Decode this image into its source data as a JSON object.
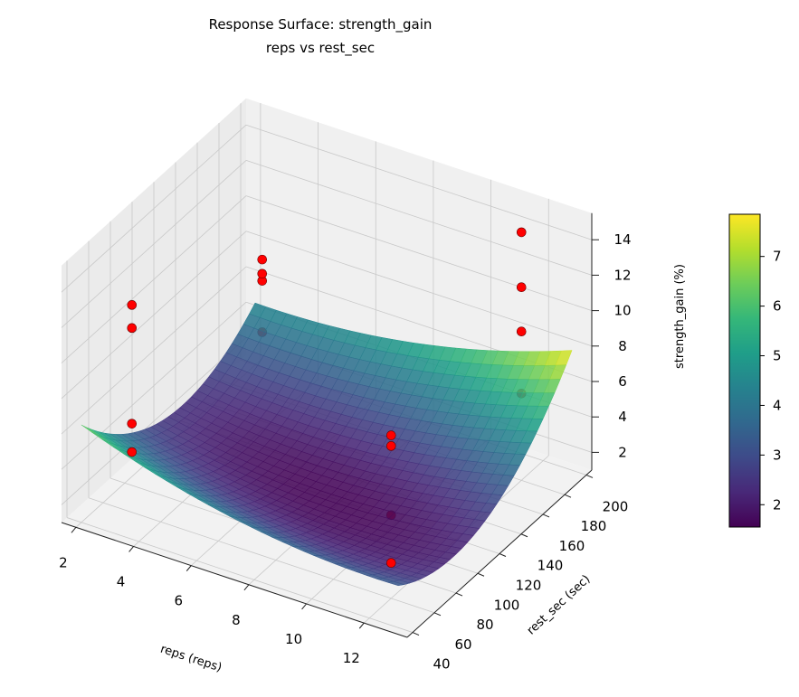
{
  "chart_data": {
    "type": "surface3d",
    "title": "Response Surface: strength_gain",
    "subtitle": "reps vs rest_sec",
    "xlabel": "reps (reps)",
    "ylabel": "rest_sec (sec)",
    "zlabel": "strength_gain (%)",
    "colorbar_label": "strength_gain (%)",
    "colormap": "viridis",
    "xlim": [
      1.5,
      13.5
    ],
    "ylim": [
      35,
      205
    ],
    "zlim": [
      1,
      15.5
    ],
    "x_ticks": [
      2,
      4,
      6,
      8,
      10,
      12
    ],
    "y_ticks": [
      40,
      60,
      80,
      100,
      120,
      140,
      160,
      180,
      200
    ],
    "z_ticks": [
      2,
      4,
      6,
      8,
      10,
      12,
      14
    ],
    "colorbar_range": [
      1.55,
      7.85
    ],
    "colorbar_ticks": [
      2,
      3,
      4,
      5,
      6,
      7
    ],
    "grid": true,
    "surface_model": {
      "form": "quadratic",
      "min_value": 1.6,
      "center_reps": 8,
      "center_rest_sec": 110,
      "coef_reps2": 0.0303,
      "coef_rest2": 0.000466,
      "coef_cross": 0.003636,
      "reps_range": [
        2,
        13
      ],
      "rest_sec_range": [
        40,
        200
      ]
    },
    "points_color": "#ff0000",
    "points": [
      {
        "reps": 3,
        "rest_sec": 60,
        "strength_gain": 4.4
      },
      {
        "reps": 3,
        "rest_sec": 60,
        "strength_gain": 6.0
      },
      {
        "reps": 3,
        "rest_sec": 60,
        "strength_gain": 11.4
      },
      {
        "reps": 3,
        "rest_sec": 60,
        "strength_gain": 12.7
      },
      {
        "reps": 3,
        "rest_sec": 180,
        "strength_gain": 4.5
      },
      {
        "reps": 3,
        "rest_sec": 180,
        "strength_gain": 7.4
      },
      {
        "reps": 3,
        "rest_sec": 180,
        "strength_gain": 7.8
      },
      {
        "reps": 3,
        "rest_sec": 180,
        "strength_gain": 8.6
      },
      {
        "reps": 12,
        "rest_sec": 60,
        "strength_gain": 3.0
      },
      {
        "reps": 12,
        "rest_sec": 60,
        "strength_gain": 5.7
      },
      {
        "reps": 12,
        "rest_sec": 60,
        "strength_gain": 9.6
      },
      {
        "reps": 12,
        "rest_sec": 60,
        "strength_gain": 10.2
      },
      {
        "reps": 12,
        "rest_sec": 180,
        "strength_gain": 5.9
      },
      {
        "reps": 12,
        "rest_sec": 180,
        "strength_gain": 9.4
      },
      {
        "reps": 12,
        "rest_sec": 180,
        "strength_gain": 11.9
      },
      {
        "reps": 12,
        "rest_sec": 180,
        "strength_gain": 15.0
      }
    ]
  }
}
